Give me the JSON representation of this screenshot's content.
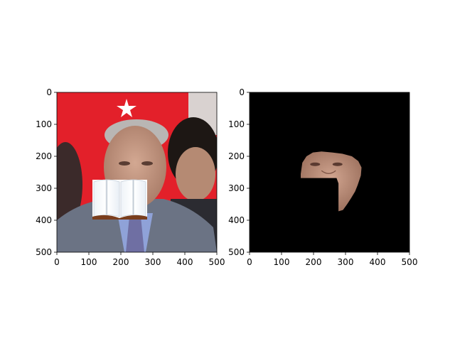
{
  "figure": {
    "background": "#ffffff",
    "panel_count": 2
  },
  "chart_data": [
    {
      "type": "image",
      "title": "",
      "xlabel": "",
      "ylabel": "",
      "xlim": [
        0,
        500
      ],
      "ylim": [
        500,
        0
      ],
      "xticks": [
        0,
        100,
        200,
        300,
        400,
        500
      ],
      "yticks": [
        0,
        100,
        200,
        300,
        400,
        500
      ],
      "xtick_labels": [
        "0",
        "100",
        "200",
        "300",
        "400",
        "500"
      ],
      "ytick_labels": [
        "0",
        "100",
        "200",
        "300",
        "400",
        "500"
      ],
      "grid": false,
      "image_content": "photo of a man in a grey suit and striped tie in front of a red flag with a white star, another young man to the right; a white open-book icon occludes the lower face",
      "occluder": {
        "icon": "open-book-icon",
        "x_range": [
          110,
          280
        ],
        "y_range": [
          275,
          395
        ]
      },
      "colors": {
        "flag_red": "#e3202a",
        "suit_grey": "#6b7384",
        "skin": "#c49a84",
        "shirt_blue": "#8fa2d8"
      }
    },
    {
      "type": "image",
      "title": "",
      "xlabel": "",
      "ylabel": "",
      "xlim": [
        0,
        500
      ],
      "ylim": [
        500,
        0
      ],
      "xticks": [
        0,
        100,
        200,
        300,
        400,
        500
      ],
      "yticks": [
        0,
        100,
        200,
        300,
        400,
        500
      ],
      "xtick_labels": [
        "0",
        "100",
        "200",
        "300",
        "400",
        "500"
      ],
      "ytick_labels": [
        "0",
        "100",
        "200",
        "300",
        "400",
        "500"
      ],
      "grid": false,
      "image_content": "segmented face region on a black background; the area covered by the occluder is cut out of the lower-left of the face",
      "mask_region": {
        "outline_data_units": [
          [
            160,
            255
          ],
          [
            165,
            220
          ],
          [
            178,
            200
          ],
          [
            198,
            188
          ],
          [
            225,
            185
          ],
          [
            258,
            188
          ],
          [
            290,
            192
          ],
          [
            320,
            200
          ],
          [
            340,
            215
          ],
          [
            350,
            235
          ],
          [
            348,
            260
          ],
          [
            338,
            290
          ],
          [
            330,
            310
          ],
          [
            318,
            330
          ],
          [
            305,
            350
          ],
          [
            292,
            368
          ],
          [
            278,
            372
          ],
          [
            278,
            285
          ],
          [
            272,
            268
          ],
          [
            160,
            268
          ]
        ]
      },
      "colors": {
        "background": "#000000",
        "skin": "#c09080"
      }
    }
  ]
}
